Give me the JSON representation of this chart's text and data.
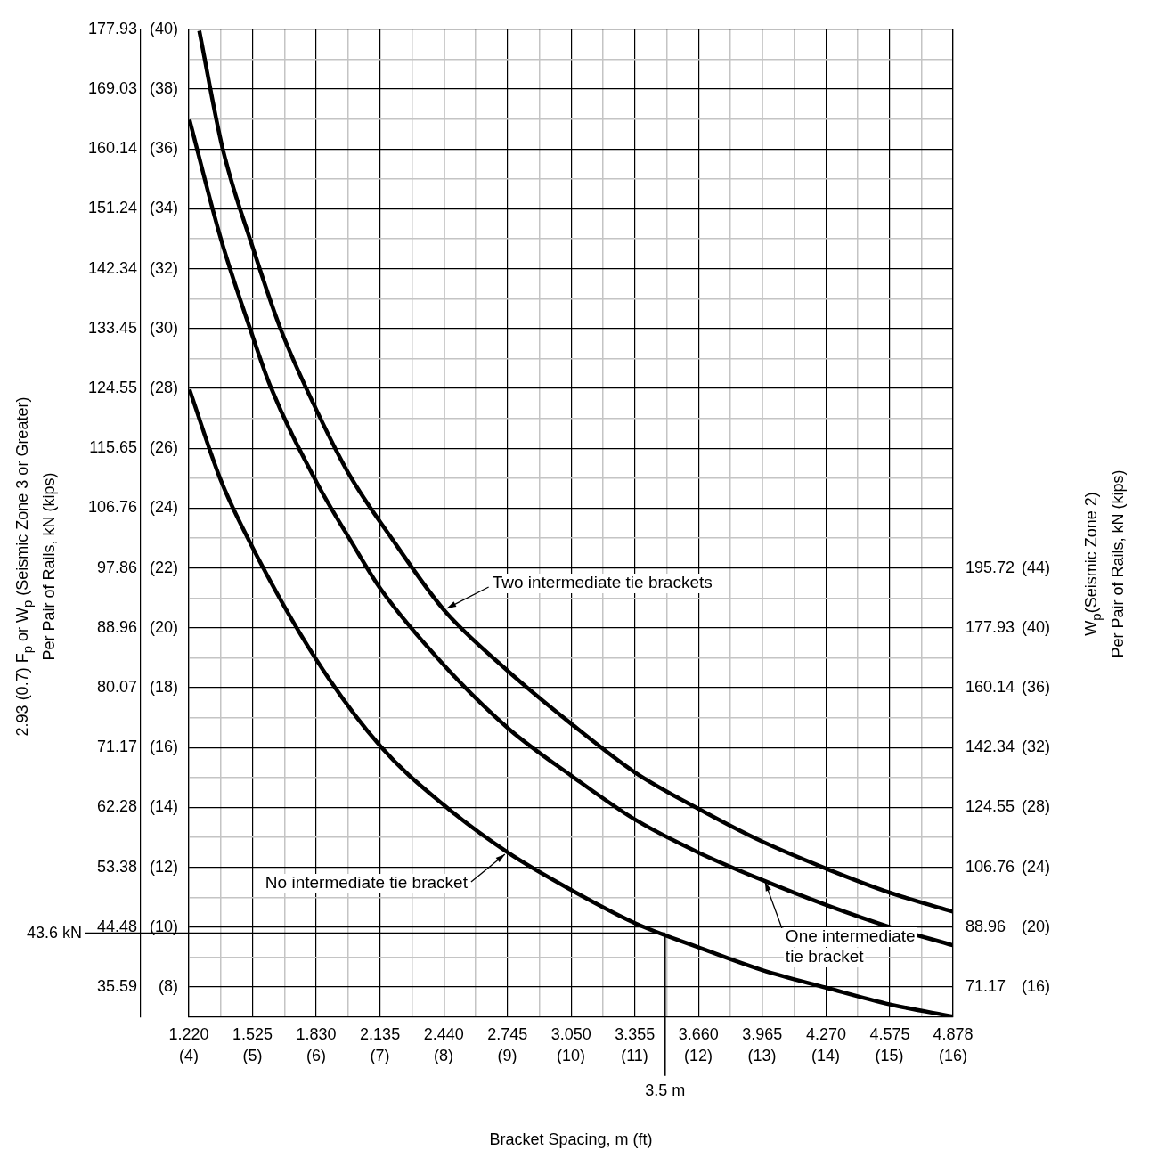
{
  "chart_data": {
    "type": "line",
    "xlabel": "Bracket Spacing, m (ft)",
    "ylabel": "2.93 (0.7) F$_{p}$ or W$_{p}$ (Seismic Zone 3 or Greater)\nPer Pair of Rails, kN (kips)",
    "y2label": "W$_{p}$(Seismic Zone 2)\nPer Pair of Rails, kN (kips)",
    "xlim": [
      1.22,
      4.878
    ],
    "xticks": [
      {
        "value": 1.22,
        "label": "1.220"
      },
      {
        "value": 1.3725,
        "label": null
      },
      1.525,
      {
        "value": 1.6775,
        "label": null
      },
      {
        "value": 1.83,
        "label": "1.830"
      },
      {
        "value": 1.9825,
        "label": null
      },
      2.135,
      {
        "value": 2.2875,
        "label": null
      },
      {
        "value": 2.44,
        "label": "2.440"
      },
      {
        "value": 2.5925,
        "label": null
      },
      2.745,
      {
        "value": 2.8975,
        "label": null
      },
      {
        "value": 3.05,
        "label": "3.050"
      },
      {
        "value": 3.2025,
        "label": null
      },
      3.355,
      {
        "value": 3.5075,
        "label": null
      },
      {
        "value": 3.66,
        "label": "3.660"
      },
      {
        "value": 3.8125,
        "label": null
      },
      3.965,
      {
        "value": 4.1175,
        "label": null
      },
      {
        "value": 4.27,
        "label": "4.270"
      },
      {
        "value": 4.4225,
        "label": null
      },
      4.575,
      {
        "value": 4.7265,
        "label": null
      },
      4.878
    ],
    "x2lim": [
      4,
      16
    ],
    "x2ticks": [
      {
        "value": 4,
        "label": "(4)"
      },
      {
        "value": 5,
        "label": "(5)"
      },
      {
        "value": 6,
        "label": "(6)"
      },
      {
        "value": 7,
        "label": "(7)"
      },
      {
        "value": 8,
        "label": "(8)"
      },
      {
        "value": 9,
        "label": "(9)"
      },
      {
        "value": 10,
        "label": "(10)"
      },
      {
        "value": 11,
        "label": "(11)"
      },
      {
        "value": 12,
        "label": "(12)"
      },
      {
        "value": 13,
        "label": "(13)"
      },
      {
        "value": 14,
        "label": "(14)"
      },
      {
        "value": 15,
        "label": "(15)"
      },
      {
        "value": 16,
        "label": "(16)"
      }
    ],
    "ylim": [
      31.14,
      177.93
    ],
    "yticks": [
      35.59,
      {
        "value": 40.03,
        "label": null
      },
      44.48,
      {
        "value": 48.93,
        "label": null
      },
      53.38,
      {
        "value": 57.82,
        "label": null
      },
      62.28,
      {
        "value": 66.72,
        "label": null
      },
      71.17,
      {
        "value": 75.62,
        "label": null
      },
      80.07,
      {
        "value": 84.51,
        "label": null
      },
      88.96,
      {
        "value": 93.41,
        "label": null
      },
      97.86,
      {
        "value": 102.3,
        "label": null
      },
      106.76,
      {
        "value": 111.2,
        "label": null
      },
      115.65,
      {
        "value": 120.1,
        "label": null
      },
      124.55,
      {
        "value": 128.99,
        "label": null
      },
      133.45,
      {
        "value": 137.89,
        "label": null
      },
      142.34,
      {
        "value": 146.79,
        "label": null
      },
      151.24,
      {
        "value": 155.68,
        "label": null
      },
      160.14,
      {
        "value": 164.58,
        "label": null
      },
      169.03,
      {
        "value": 173.47,
        "label": null
      },
      177.93
    ],
    "y3lim": [
      7,
      40
    ],
    "y3ticks": [
      {
        "value": 8,
        "label": "(8)"
      },
      {
        "value": 10,
        "label": "(10)"
      },
      {
        "value": 12,
        "label": "(12)"
      },
      {
        "value": 14,
        "label": "(14)"
      },
      {
        "value": 16,
        "label": "(16)"
      },
      {
        "value": 18,
        "label": "(18)"
      },
      {
        "value": 20,
        "label": "(20)"
      },
      {
        "value": 22,
        "label": "(22)"
      },
      {
        "value": 24,
        "label": "(24)"
      },
      {
        "value": 26,
        "label": "(26)"
      },
      {
        "value": 28,
        "label": "(28)"
      },
      {
        "value": 30,
        "label": "(30)"
      },
      {
        "value": 32,
        "label": "(32)"
      },
      {
        "value": 34,
        "label": "(34)"
      },
      {
        "value": 36,
        "label": "(36)"
      },
      {
        "value": 38,
        "label": "(38)"
      },
      {
        "value": 40,
        "label": "(40)"
      }
    ],
    "y2lim": [
      62.28,
      355.86
    ],
    "y2ticks": [
      71.17,
      88.96,
      106.76,
      124.55,
      142.34,
      160.14,
      177.93,
      195.72
    ],
    "annotations": [
      "(16)",
      "(20)",
      "(24)",
      "(28)",
      "(32)",
      "(36)",
      "(40)",
      "(44)"
    ],
    "grid": true,
    "ref_lines": [
      {
        "axis": "y",
        "value": 43.6,
        "label": "43.6 kN",
        "color": "#000000"
      },
      {
        "axis": "x",
        "value": 3.5,
        "label": "3.5 m",
        "color": "#000000"
      }
    ],
    "series": [
      {
        "name": "Two intermediate tie brackets",
        "color": "#000000",
        "x": [
          1.27,
          1.381,
          1.528,
          1.659,
          1.83,
          1.985,
          2.197,
          2.442,
          2.746,
          3.051,
          3.355,
          3.658,
          3.965,
          4.27,
          4.577,
          4.877
        ],
        "values": [
          177.7,
          160.3,
          145.3,
          133.4,
          121.4,
          111.9,
          102,
          91.6,
          82.6,
          74.7,
          67.5,
          62.1,
          57.2,
          53.2,
          49.6,
          46.8
        ]
      },
      {
        "name": "One intermediate tie bracket",
        "color": "#000000",
        "x": [
          1.223,
          1.373,
          1.52,
          1.61,
          1.83,
          2.001,
          2.139,
          2.442,
          2.754,
          3.051,
          3.355,
          3.658,
          3.965,
          4.27,
          4.577,
          4.877
        ],
        "values": [
          164.5,
          146.8,
          132.8,
          124.9,
          110.7,
          101.6,
          94.7,
          83.4,
          73.9,
          67,
          60.5,
          55.6,
          51.5,
          47.8,
          44.5,
          41.8
        ]
      },
      {
        "name": "No intermediate tie bracket",
        "color": "#000000",
        "x": [
          1.223,
          1.373,
          1.512,
          1.827,
          2.139,
          2.442,
          2.746,
          3.051,
          3.355,
          3.658,
          3.965,
          4.27,
          4.577,
          4.877
        ],
        "values": [
          124.4,
          110.9,
          101.7,
          84.4,
          71.3,
          62.6,
          55.6,
          50,
          45.1,
          41.5,
          38.1,
          35.5,
          33,
          31.2
        ]
      }
    ]
  }
}
